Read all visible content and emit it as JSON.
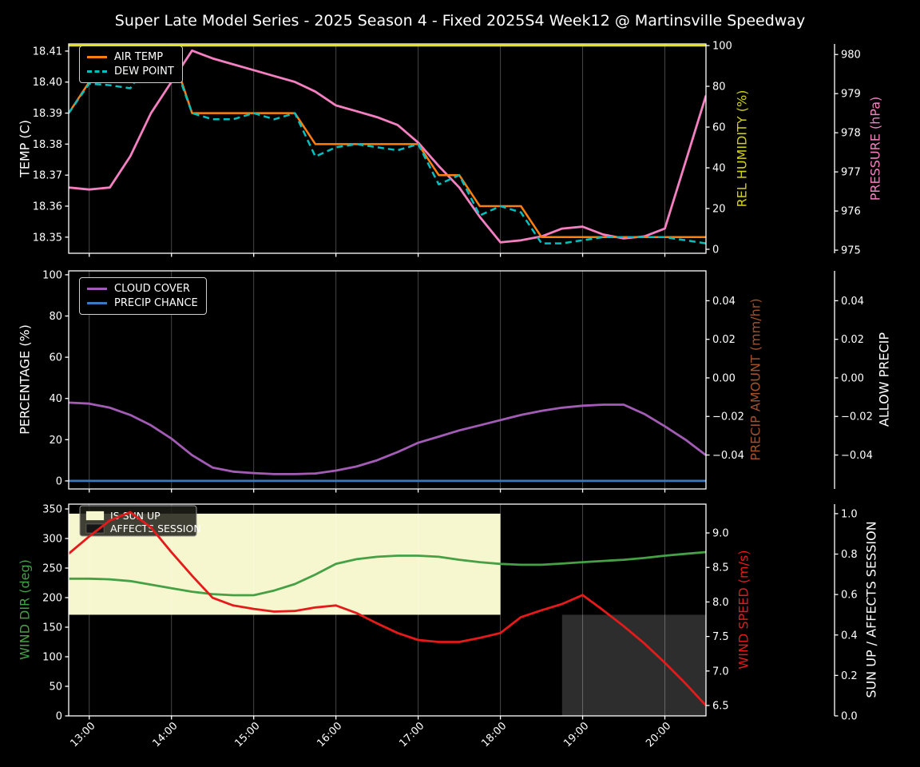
{
  "title": "Super Late Model Series - 2025 Season 4 - Fixed 2025S4 Week12 @ Martinsville Speedway",
  "chart_data": {
    "type": "line",
    "x_times": [
      "12:45",
      "13:00",
      "13:15",
      "13:30",
      "13:45",
      "14:00",
      "14:15",
      "14:30",
      "14:45",
      "15:00",
      "15:15",
      "15:30",
      "15:45",
      "16:00",
      "16:15",
      "16:30",
      "16:45",
      "17:00",
      "17:15",
      "17:30",
      "17:45",
      "18:00",
      "18:15",
      "18:30",
      "18:45",
      "19:00",
      "19:15",
      "19:30",
      "19:45",
      "20:00",
      "20:15",
      "20:30"
    ],
    "x_hours": [
      12.75,
      13,
      13.25,
      13.5,
      13.75,
      14,
      14.25,
      14.5,
      14.75,
      15,
      15.25,
      15.5,
      15.75,
      16,
      16.25,
      16.5,
      16.75,
      17,
      17.25,
      17.5,
      17.75,
      18,
      18.25,
      18.5,
      18.75,
      19,
      19.25,
      19.5,
      19.75,
      20,
      20.25,
      20.5
    ],
    "x_tick_hours": [
      13,
      14,
      15,
      16,
      17,
      18,
      19,
      20
    ],
    "x_tick_labels": [
      "13:00",
      "14:00",
      "15:00",
      "16:00",
      "17:00",
      "18:00",
      "19:00",
      "20:00"
    ],
    "is_sun_up": [
      1,
      1,
      1,
      1,
      1,
      1,
      1,
      1,
      1,
      1,
      1,
      1,
      1,
      1,
      1,
      1,
      1,
      1,
      1,
      1,
      1,
      1,
      0,
      0,
      0,
      0,
      0,
      0,
      0,
      0,
      0,
      0
    ],
    "affects_session": [
      0,
      0,
      0,
      0,
      0,
      0,
      0,
      0,
      0,
      0,
      0,
      0,
      0,
      0,
      0,
      0,
      0,
      0,
      0,
      0,
      0,
      0,
      0,
      0,
      1,
      1,
      1,
      1,
      1,
      1,
      1,
      1
    ],
    "panels": [
      {
        "name": "temperature",
        "axes": {
          "left": {
            "label": "TEMP (C)",
            "color": "#ffffff",
            "ticks": [
              18.35,
              18.36,
              18.37,
              18.38,
              18.39,
              18.4,
              18.41
            ],
            "tick_labels": [
              "18.35",
              "18.36",
              "18.37",
              "18.38",
              "18.39",
              "18.40",
              "18.41"
            ],
            "range": [
              18.3448,
              18.4123
            ]
          },
          "right1": {
            "label": "REL HUMIDITY (%)",
            "color": "#d2d214",
            "ticks": [
              0,
              20,
              40,
              60,
              80,
              100
            ],
            "tick_labels": [
              "0",
              "20",
              "40",
              "60",
              "80",
              "100"
            ],
            "range": [
              -1.95,
              100.8
            ]
          },
          "right2": {
            "label": "PRESSURE (hPa)",
            "color": "#f47fc1",
            "ticks": [
              975,
              976,
              977,
              978,
              979,
              980
            ],
            "tick_labels": [
              "975",
              "976",
              "977",
              "978",
              "979",
              "980"
            ],
            "range": [
              974.92,
              980.27
            ]
          }
        },
        "legend": [
          {
            "label": "AIR TEMP",
            "color": "#ff7f0e",
            "swatch": "line"
          },
          {
            "label": "DEW POINT",
            "color": "#00bfbf",
            "swatch": "line-dashed"
          }
        ],
        "series": [
          {
            "name": "rel-humidity",
            "axis": "right1",
            "color": "#e3e31c",
            "width": 2.5,
            "values": [
              100,
              100,
              100,
              100,
              100,
              100,
              100,
              100,
              100,
              100,
              100,
              100,
              100,
              100,
              100,
              100,
              100,
              100,
              100,
              100,
              100,
              100,
              100,
              100,
              100,
              100,
              100,
              100,
              100,
              100,
              100,
              100
            ]
          },
          {
            "name": "pressure",
            "axis": "right2",
            "color": "#f47fc1",
            "width": 2.8,
            "values": [
              976.6,
              976.55,
              976.6,
              977.4,
              978.5,
              979.3,
              980.1,
              979.9,
              979.75,
              979.6,
              979.45,
              979.3,
              979.05,
              978.7,
              978.55,
              978.4,
              978.2,
              977.75,
              977.15,
              976.6,
              975.85,
              975.2,
              975.25,
              975.35,
              975.55,
              975.6,
              975.4,
              975.3,
              975.35,
              975.55,
              977.25,
              978.95
            ]
          },
          {
            "name": "air-temp",
            "axis": "left",
            "color": "#ff7f0e",
            "width": 2.5,
            "values": [
              18.39,
              18.4,
              18.4,
              18.4,
              18.41,
              18.41,
              18.39,
              18.39,
              18.39,
              18.39,
              18.39,
              18.39,
              18.38,
              18.38,
              18.38,
              18.38,
              18.38,
              18.38,
              18.37,
              18.37,
              18.36,
              18.36,
              18.36,
              18.35,
              18.35,
              18.35,
              18.35,
              18.35,
              18.35,
              18.35,
              18.35,
              18.35
            ]
          },
          {
            "name": "dew-point",
            "axis": "left",
            "color": "#00bfbf",
            "width": 2.5,
            "dash": "8 5",
            "values": [
              18.39,
              18.3995,
              18.399,
              18.398,
              18.408,
              18.4085,
              18.39,
              18.388,
              18.388,
              18.39,
              18.388,
              18.39,
              18.376,
              18.379,
              18.38,
              18.379,
              18.378,
              18.38,
              18.367,
              18.37,
              18.357,
              18.36,
              18.358,
              18.348,
              18.348,
              18.349,
              18.35,
              18.35,
              18.35,
              18.35,
              18.349,
              18.348
            ]
          }
        ]
      },
      {
        "name": "precipitation",
        "axes": {
          "left": {
            "label": "PERCENTAGE (%)",
            "color": "#ffffff",
            "ticks": [
              0,
              20,
              40,
              60,
              80,
              100
            ],
            "tick_labels": [
              "0",
              "20",
              "40",
              "60",
              "80",
              "100"
            ],
            "range": [
              -3.9,
              101.9
            ]
          },
          "right1": {
            "label": "PRECIP AMOUNT (mm/hr)",
            "color": "#a0522d",
            "ticks": [
              0.04,
              0.02,
              0.0,
              -0.02,
              -0.04
            ],
            "tick_labels": [
              "0.04",
              "0.02",
              "0.00",
              "−0.02",
              "−0.04"
            ],
            "range": [
              -0.0576,
              0.0555
            ]
          },
          "right2": {
            "label": "ALLOW PRECIP",
            "color": "#ffffff",
            "ticks": [
              0.04,
              0.02,
              0.0,
              -0.02,
              -0.04
            ],
            "tick_labels": [
              "0.04",
              "0.02",
              "0.00",
              "−0.02",
              "−0.04"
            ],
            "range": [
              -0.0576,
              0.0555
            ]
          }
        },
        "legend": [
          {
            "label": "CLOUD COVER",
            "color": "#a35cb5",
            "swatch": "line"
          },
          {
            "label": "PRECIP CHANCE",
            "color": "#3a7abf",
            "swatch": "line"
          }
        ],
        "series": [
          {
            "name": "cloud-cover",
            "axis": "left",
            "color": "#a35cb5",
            "width": 2.8,
            "values": [
              38,
              37.5,
              35.5,
              32,
              27,
              20.5,
              12.5,
              6.5,
              4.5,
              3.8,
              3.3,
              3.3,
              3.6,
              5,
              7,
              10,
              14,
              18.5,
              21.5,
              24.5,
              27,
              29.5,
              32,
              34,
              35.5,
              36.5,
              37,
              37,
              32.5,
              26.5,
              20,
              12.5
            ]
          },
          {
            "name": "precip-chance",
            "axis": "left",
            "color": "#3a7abf",
            "width": 2.8,
            "values": [
              0,
              0,
              0,
              0,
              0,
              0,
              0,
              0,
              0,
              0,
              0,
              0,
              0,
              0,
              0,
              0,
              0,
              0,
              0,
              0,
              0,
              0,
              0,
              0,
              0,
              0,
              0,
              0,
              0,
              0,
              0,
              0
            ]
          }
        ]
      },
      {
        "name": "wind",
        "axes": {
          "left": {
            "label": "WIND DIR (deg)",
            "color": "#46a046",
            "ticks": [
              0,
              50,
              100,
              150,
              200,
              250,
              300,
              350
            ],
            "tick_labels": [
              "0",
              "50",
              "100",
              "150",
              "200",
              "250",
              "300",
              "350"
            ],
            "range": [
              0,
              358.1
            ]
          },
          "right1": {
            "label": "WIND SPEED (m/s)",
            "color": "#e51a1a",
            "ticks": [
              6.5,
              7.0,
              7.5,
              8.0,
              8.5,
              9.0
            ],
            "tick_labels": [
              "6.5",
              "7.0",
              "7.5",
              "8.0",
              "8.5",
              "9.0"
            ],
            "range": [
              6.35,
              9.417
            ]
          },
          "right2": {
            "label": "SUN UP / AFFECTS SESSION",
            "color": "#ffffff",
            "ticks": [
              0.0,
              0.2,
              0.4,
              0.6,
              0.8,
              1.0
            ],
            "tick_labels": [
              "0.0",
              "0.2",
              "0.4",
              "0.6",
              "0.8",
              "1.0"
            ],
            "range": [
              0,
              1.047
            ]
          }
        },
        "legend_in_svg": true,
        "legend": [
          {
            "label": "IS SUN UP",
            "color": "#f7f7cf",
            "swatch": "patch"
          },
          {
            "label": "AFFECTS SESSION",
            "color": "#161616",
            "swatch": "patch"
          }
        ],
        "bands": [
          {
            "name": "is-sun-up-band",
            "axis": "right2",
            "x_from": 12.75,
            "x_to": 18.0,
            "v_from": 0.5,
            "v_to": 1.0,
            "color": "#f7f7cf"
          },
          {
            "name": "affects-session-band",
            "axis": "right2",
            "x_from": 18.75,
            "x_to": 20.5,
            "v_from": 0.0,
            "v_to": 0.5,
            "color": "#2d2d2d"
          }
        ],
        "series": [
          {
            "name": "wind-dir",
            "axis": "left",
            "color": "#46a046",
            "width": 2.8,
            "values": [
              232,
              232,
              231,
              228,
              222,
              216,
              210,
              206,
              204,
              204,
              212,
              223,
              239,
              257,
              265,
              269,
              271,
              271,
              269,
              264,
              260,
              257,
              255.5,
              255.5,
              257.5,
              260,
              262,
              264,
              267,
              271,
              274,
              277
            ]
          },
          {
            "name": "wind-speed",
            "axis": "right1",
            "color": "#e51a1a",
            "width": 2.8,
            "values": [
              8.7,
              8.95,
              9.18,
              9.3,
              9.08,
              8.72,
              8.38,
              8.06,
              7.95,
              7.9,
              7.86,
              7.87,
              7.92,
              7.95,
              7.84,
              7.69,
              7.55,
              7.45,
              7.42,
              7.42,
              7.48,
              7.55,
              7.78,
              7.88,
              7.97,
              8.1,
              7.88,
              7.65,
              7.4,
              7.12,
              6.82,
              6.5
            ]
          }
        ]
      }
    ]
  }
}
